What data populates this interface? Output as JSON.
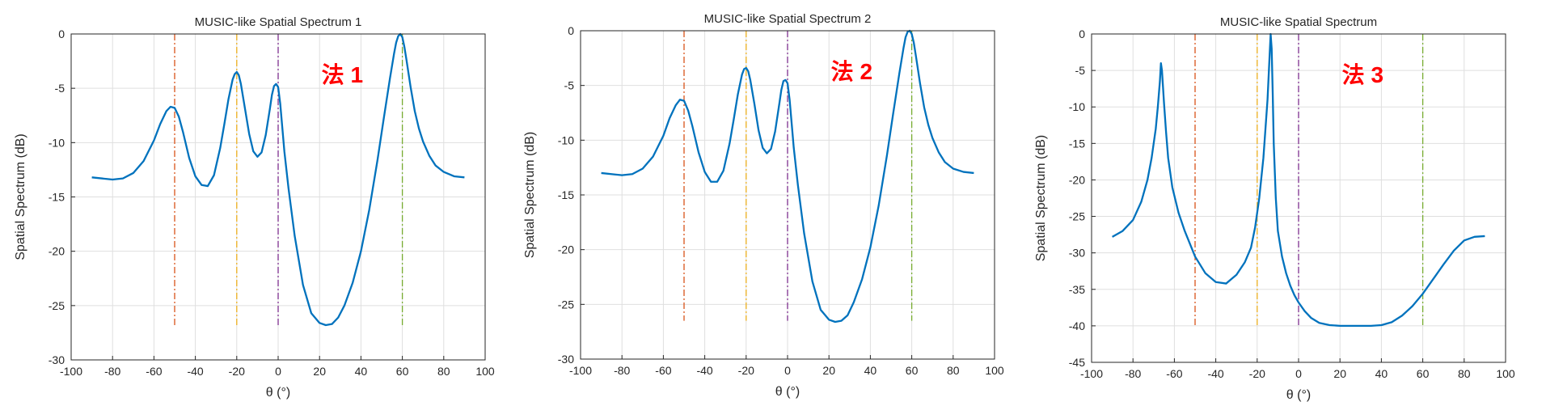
{
  "chart_data": [
    {
      "type": "line",
      "title": "MUSIC-like Spatial Spectrum 1",
      "xlabel": "θ (°)",
      "ylabel": "Spatial Spectrum (dB)",
      "xlim": [
        -100,
        100
      ],
      "ylim": [
        -30,
        0
      ],
      "xticks": [
        "-100",
        "-80",
        "-60",
        "-40",
        "-20",
        "0",
        "20",
        "40",
        "60",
        "80",
        "100"
      ],
      "yticks": [
        "0",
        "-5",
        "-10",
        "-15",
        "-20",
        "-25",
        "-30"
      ],
      "grid": true,
      "annotation": "法 1",
      "true_angles": [
        -50,
        -20,
        0,
        60
      ],
      "marker_colors": [
        "#d95319",
        "#edb120",
        "#7e2f8e",
        "#77ac30"
      ],
      "marker_ymin": -26.8,
      "series": [
        {
          "color": "#0072bd",
          "x": [
            -90,
            -80,
            -75,
            -70,
            -65,
            -60,
            -57,
            -54,
            -52,
            -50,
            -48,
            -46,
            -43,
            -40,
            -37,
            -34,
            -31,
            -28,
            -26,
            -24,
            -22,
            -21,
            -20,
            -19,
            -18,
            -16,
            -14,
            -12,
            -10,
            -8,
            -6,
            -4,
            -3,
            -2,
            -1,
            0,
            1,
            2,
            3,
            5,
            8,
            12,
            16,
            20,
            23,
            26,
            29,
            32,
            36,
            40,
            44,
            48,
            51,
            54,
            56,
            57,
            58,
            59,
            60,
            61,
            62,
            64,
            66,
            68,
            70,
            73,
            76,
            80,
            85,
            90
          ],
          "values": [
            -13.2,
            -13.4,
            -13.3,
            -12.8,
            -11.7,
            -9.8,
            -8.3,
            -7.1,
            -6.7,
            -6.8,
            -7.6,
            -9.0,
            -11.4,
            -13.1,
            -13.9,
            -14.0,
            -13.0,
            -10.5,
            -8.3,
            -6.0,
            -4.2,
            -3.7,
            -3.5,
            -3.8,
            -4.6,
            -6.9,
            -9.2,
            -10.8,
            -11.3,
            -10.9,
            -9.3,
            -6.9,
            -5.6,
            -4.8,
            -4.6,
            -4.9,
            -6.4,
            -8.6,
            -10.8,
            -14.2,
            -18.6,
            -23.1,
            -25.7,
            -26.6,
            -26.8,
            -26.7,
            -26.1,
            -25.0,
            -22.9,
            -20.0,
            -16.2,
            -11.6,
            -7.8,
            -4.1,
            -1.8,
            -0.8,
            -0.2,
            0.0,
            -0.3,
            -1.2,
            -2.4,
            -4.9,
            -7.1,
            -8.7,
            -9.9,
            -11.2,
            -12.1,
            -12.7,
            -13.1,
            -13.2
          ]
        }
      ]
    },
    {
      "type": "line",
      "title": "MUSIC-like Spatial Spectrum 2",
      "xlabel": "θ (°)",
      "ylabel": "Spatial Spectrum (dB)",
      "xlim": [
        -100,
        100
      ],
      "ylim": [
        -30,
        0
      ],
      "xticks": [
        "-100",
        "-80",
        "-60",
        "-40",
        "-20",
        "0",
        "20",
        "40",
        "60",
        "80",
        "100"
      ],
      "yticks": [
        "0",
        "-5",
        "-10",
        "-15",
        "-20",
        "-25",
        "-30"
      ],
      "grid": true,
      "annotation": "法 2",
      "true_angles": [
        -50,
        -20,
        0,
        60
      ],
      "marker_colors": [
        "#d95319",
        "#edb120",
        "#7e2f8e",
        "#77ac30"
      ],
      "marker_ymin": -26.5,
      "series": [
        {
          "color": "#0072bd",
          "x": [
            -90,
            -80,
            -75,
            -70,
            -65,
            -60,
            -57,
            -54,
            -52,
            -50,
            -48,
            -46,
            -43,
            -40,
            -37,
            -34,
            -31,
            -28,
            -26,
            -24,
            -22,
            -21,
            -20,
            -19,
            -18,
            -16,
            -14,
            -12,
            -10,
            -8,
            -6,
            -4,
            -3,
            -2,
            -1,
            0,
            1,
            2,
            3,
            5,
            8,
            12,
            16,
            20,
            23,
            26,
            29,
            32,
            36,
            40,
            44,
            48,
            51,
            54,
            56,
            57,
            58,
            59,
            60,
            61,
            62,
            64,
            66,
            68,
            70,
            73,
            76,
            80,
            85,
            90
          ],
          "values": [
            -13.0,
            -13.2,
            -13.1,
            -12.6,
            -11.5,
            -9.6,
            -8.0,
            -6.8,
            -6.3,
            -6.4,
            -7.3,
            -8.7,
            -11.1,
            -12.9,
            -13.8,
            -13.8,
            -12.8,
            -10.3,
            -8.1,
            -5.8,
            -4.0,
            -3.5,
            -3.4,
            -3.7,
            -4.5,
            -6.7,
            -9.1,
            -10.7,
            -11.2,
            -10.8,
            -9.2,
            -6.7,
            -5.4,
            -4.6,
            -4.5,
            -4.8,
            -6.3,
            -8.5,
            -10.7,
            -14.1,
            -18.5,
            -22.9,
            -25.5,
            -26.4,
            -26.6,
            -26.5,
            -26.0,
            -24.8,
            -22.7,
            -19.8,
            -16.0,
            -11.4,
            -7.6,
            -3.9,
            -1.6,
            -0.6,
            -0.1,
            0.0,
            -0.3,
            -1.1,
            -2.3,
            -4.8,
            -7.0,
            -8.6,
            -9.8,
            -11.1,
            -12.0,
            -12.6,
            -12.9,
            -13.0
          ]
        }
      ]
    },
    {
      "type": "line",
      "title": "MUSIC-like Spatial Spectrum",
      "xlabel": "θ (°)",
      "ylabel": "Spatial Spectrum (dB)",
      "xlim": [
        -100,
        100
      ],
      "ylim": [
        -45,
        0
      ],
      "xticks": [
        "-100",
        "-80",
        "-60",
        "-40",
        "-20",
        "0",
        "20",
        "40",
        "60",
        "80",
        "100"
      ],
      "yticks": [
        "0",
        "-5",
        "-10",
        "-15",
        "-20",
        "-25",
        "-30",
        "-35",
        "-40",
        "-45"
      ],
      "grid": true,
      "annotation": "法 3",
      "true_angles": [
        -50,
        -20,
        0,
        60
      ],
      "marker_colors": [
        "#d95319",
        "#edb120",
        "#7e2f8e",
        "#77ac30"
      ],
      "marker_ymin": -40,
      "series": [
        {
          "color": "#0072bd",
          "x": [
            -90,
            -85,
            -80,
            -76,
            -73,
            -71,
            -69,
            -68,
            -67,
            -66.5,
            -66,
            -65,
            -64,
            -63,
            -61,
            -58,
            -55,
            -50,
            -45,
            -40,
            -35,
            -30,
            -26,
            -23,
            -21,
            -19,
            -17,
            -16,
            -15,
            -14,
            -13.5,
            -13,
            -12.5,
            -12,
            -11,
            -10,
            -8,
            -6,
            -4,
            -2,
            0,
            3,
            6,
            10,
            15,
            20,
            25,
            30,
            35,
            40,
            45,
            50,
            55,
            60,
            65,
            70,
            75,
            80,
            85,
            90
          ],
          "values": [
            -27.8,
            -27.0,
            -25.5,
            -23.0,
            -20.0,
            -17.0,
            -13.0,
            -10.0,
            -6.5,
            -4.0,
            -5.0,
            -9.5,
            -13.5,
            -17.0,
            -21.0,
            -24.5,
            -27.0,
            -30.5,
            -32.8,
            -34.0,
            -34.2,
            -33.0,
            -31.3,
            -29.3,
            -26.5,
            -22.5,
            -17.0,
            -13.0,
            -9.0,
            -3.0,
            0.0,
            -2.0,
            -8.0,
            -15.0,
            -22.5,
            -27.0,
            -30.5,
            -32.8,
            -34.5,
            -35.8,
            -36.8,
            -38.0,
            -38.9,
            -39.6,
            -39.9,
            -40.0,
            -40.0,
            -40.0,
            -40.0,
            -39.9,
            -39.5,
            -38.6,
            -37.3,
            -35.6,
            -33.6,
            -31.6,
            -29.7,
            -28.3,
            -27.8,
            -27.7
          ]
        }
      ]
    }
  ]
}
